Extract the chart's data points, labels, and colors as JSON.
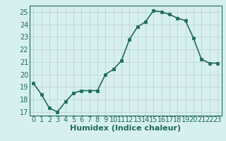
{
  "x": [
    0,
    1,
    2,
    3,
    4,
    5,
    6,
    7,
    8,
    9,
    10,
    11,
    12,
    13,
    14,
    15,
    16,
    17,
    18,
    19,
    20,
    21,
    22,
    23
  ],
  "y": [
    19.3,
    18.4,
    17.3,
    17.0,
    17.8,
    18.5,
    18.7,
    18.7,
    18.7,
    20.0,
    20.4,
    21.1,
    22.8,
    23.8,
    24.2,
    25.1,
    25.0,
    24.8,
    24.5,
    24.3,
    22.9,
    21.2,
    20.9,
    20.9
  ],
  "xlabel": "Humidex (Indice chaleur)",
  "xlim": [
    -0.5,
    23.5
  ],
  "ylim": [
    16.7,
    25.5
  ],
  "yticks": [
    17,
    18,
    19,
    20,
    21,
    22,
    23,
    24,
    25
  ],
  "xticks": [
    0,
    1,
    2,
    3,
    4,
    5,
    6,
    7,
    8,
    9,
    10,
    11,
    12,
    13,
    14,
    15,
    16,
    17,
    18,
    19,
    20,
    21,
    22,
    23
  ],
  "line_color": "#1f6b5c",
  "bg_color": "#d6f0f0",
  "grid_color": "#c0d8d8",
  "marker_size": 2.5,
  "line_width": 1.2,
  "xlabel_fontsize": 8,
  "tick_fontsize": 7
}
